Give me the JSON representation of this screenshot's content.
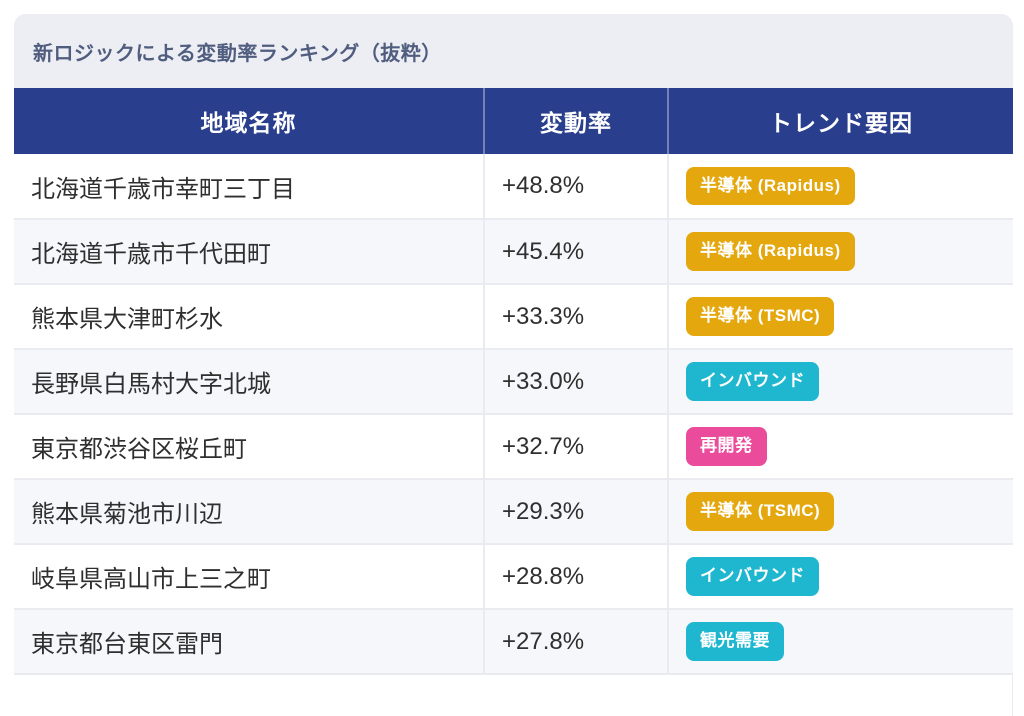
{
  "card": {
    "title": "新ロジックによる変動率ランキング（抜粋）"
  },
  "table": {
    "columns": [
      "地域名称",
      "変動率",
      "トレンド要因"
    ],
    "rows": [
      {
        "region": "北海道千歳市幸町三丁目",
        "change": "+48.8%",
        "factor": "半導体 (Rapidus)",
        "factor_color": "gold"
      },
      {
        "region": "北海道千歳市千代田町",
        "change": "+45.4%",
        "factor": "半導体 (Rapidus)",
        "factor_color": "gold"
      },
      {
        "region": "熊本県大津町杉水",
        "change": "+33.3%",
        "factor": "半導体 (TSMC)",
        "factor_color": "gold"
      },
      {
        "region": "長野県白馬村大字北城",
        "change": "+33.0%",
        "factor": "インバウンド",
        "factor_color": "cyan"
      },
      {
        "region": "東京都渋谷区桜丘町",
        "change": "+32.7%",
        "factor": "再開発",
        "factor_color": "pink"
      },
      {
        "region": "熊本県菊池市川辺",
        "change": "+29.3%",
        "factor": "半導体 (TSMC)",
        "factor_color": "gold"
      },
      {
        "region": "岐阜県高山市上三之町",
        "change": "+28.8%",
        "factor": "インバウンド",
        "factor_color": "cyan"
      },
      {
        "region": "東京都台東区雷門",
        "change": "+27.8%",
        "factor": "観光需要",
        "factor_color": "cyan"
      }
    ]
  },
  "colors": {
    "header_navy": "#293e8c",
    "title_bg": "#eceef4",
    "title_text": "#505d7e",
    "body_text": "#2f2f2f",
    "zebra": "#f6f7fa",
    "divider": "#e9ebf1",
    "badge_gold": "#e4a70d",
    "badge_cyan": "#1fb7d0",
    "badge_pink": "#ea4c9b"
  }
}
